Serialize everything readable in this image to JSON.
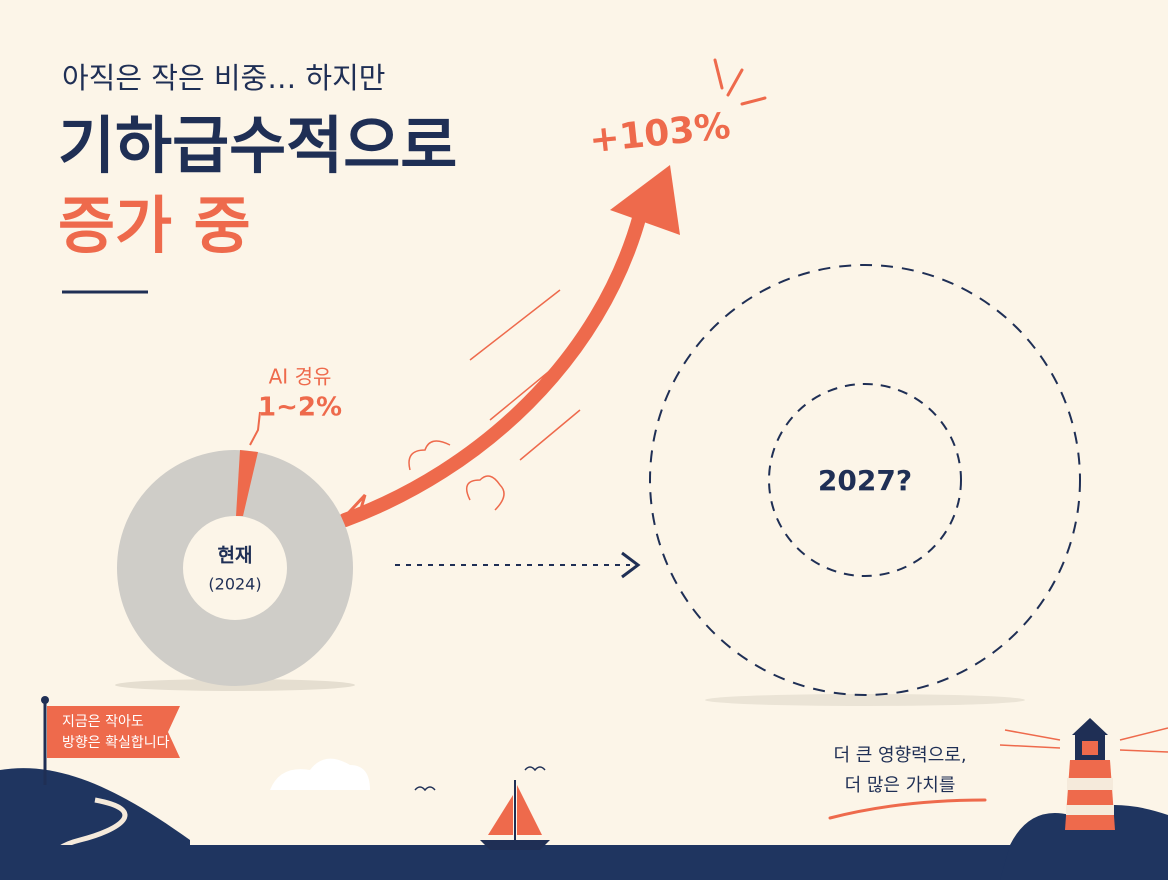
{
  "headline": {
    "line1": "아직은 작은 비중… 하지만",
    "line2": "기하급수적으로",
    "line3": "증가 중"
  },
  "growth_label": "+103%",
  "donut": {
    "segment_label": "AI 경유",
    "segment_value": "1~2%",
    "center_label": "현재",
    "center_sub": "(2024)"
  },
  "future": {
    "label": "2027?"
  },
  "flag": {
    "lines": [
      "지금은 작아도",
      "방향은 확실합니다"
    ]
  },
  "closing": {
    "lines": [
      "더 큰 영향력으로,",
      "더 많은 가치를"
    ]
  }
}
